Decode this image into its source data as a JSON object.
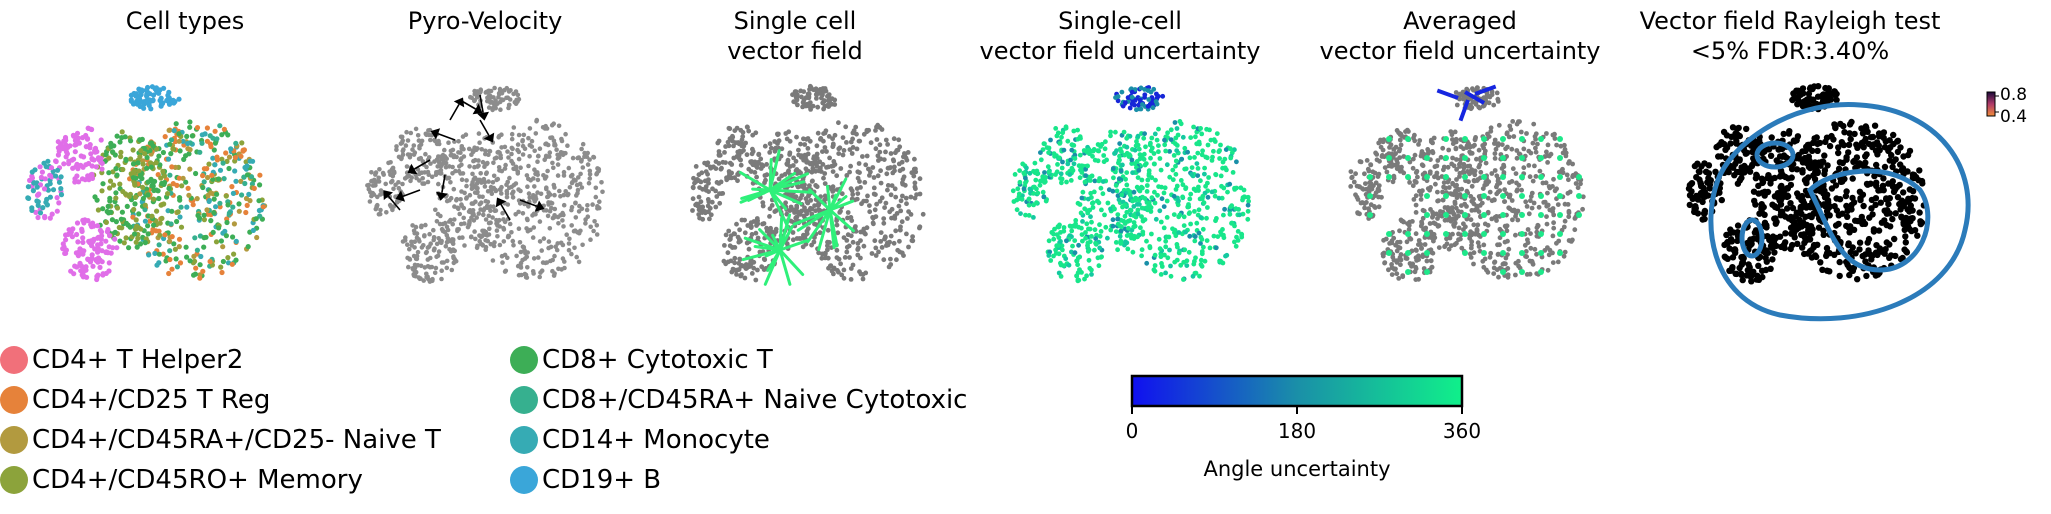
{
  "panels": [
    {
      "id": "cell-types",
      "title_lines": [
        "Cell types"
      ]
    },
    {
      "id": "pyro-velocity",
      "title_lines": [
        "Pyro-Velocity"
      ]
    },
    {
      "id": "single-cell-vector-field",
      "title_lines": [
        "Single cell",
        "vector field"
      ]
    },
    {
      "id": "single-cell-uncertainty",
      "title_lines": [
        "Single-cell",
        "vector field uncertainty"
      ]
    },
    {
      "id": "averaged-uncertainty",
      "title_lines": [
        "Averaged",
        "vector field uncertainty"
      ]
    },
    {
      "id": "rayleigh-test",
      "title_lines": [
        "Vector field Rayleigh test",
        "<5% FDR:3.40%"
      ]
    }
  ],
  "legend": {
    "items": [
      {
        "label": "CD4+ T Helper2",
        "color": "#f1707a"
      },
      {
        "label": "CD4+/CD25 T Reg",
        "color": "#e6823a"
      },
      {
        "label": "CD4+/CD45RA+/CD25- Naive T",
        "color": "#b29a3f"
      },
      {
        "label": "CD4+/CD45RO+ Memory",
        "color": "#8ca33b"
      },
      {
        "label": "CD8+ Cytotoxic T",
        "color": "#3dae56"
      },
      {
        "label": "CD8+/CD45RA+ Naive Cytotoxic",
        "color": "#36b08f"
      },
      {
        "label": "CD14+ Monocyte",
        "color": "#36abb4"
      },
      {
        "label": "CD19+ B",
        "color": "#3aa6d9"
      }
    ],
    "extra_cluster_color": "#e06ee8"
  },
  "chart_data": {
    "type": "scatter",
    "description_free": true,
    "colorbar": {
      "label": "Angle uncertainty",
      "ticks": [
        0,
        180,
        360
      ],
      "range": [
        0,
        360
      ],
      "colors": [
        "#1010f0",
        "#10f08a"
      ]
    },
    "mini_colorbar": {
      "ticks": [
        "0.8",
        "0.4"
      ],
      "colors": [
        "#1a0a3a",
        "#f08c3a"
      ]
    },
    "series_colors": {
      "grey_cells": "#8c8c8c",
      "dark_grey_cells": "#7a7a7a",
      "arrows": "#000000",
      "contour": "#2b7bba",
      "rayleigh_cells": "#000000"
    }
  }
}
